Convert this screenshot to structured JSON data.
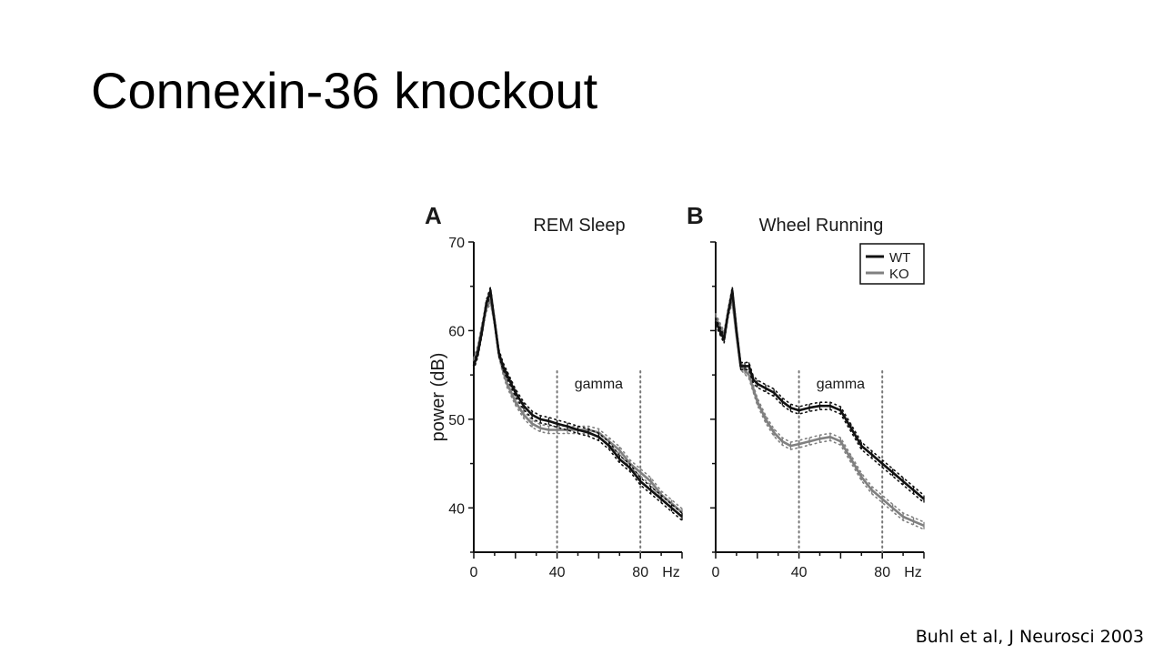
{
  "slide": {
    "title": "Connexin-36 knockout",
    "citation": "Buhl et al, J Neurosci 2003"
  },
  "chart_data": [
    {
      "type": "line",
      "panel_label": "A",
      "title": "REM Sleep",
      "ylabel": "power (dB)",
      "xlabel": "",
      "x_unit_label": "Hz",
      "xlim": [
        0,
        100
      ],
      "ylim": [
        35,
        70
      ],
      "x_ticks": [
        0,
        40,
        80
      ],
      "y_ticks": [
        40,
        50,
        60,
        70
      ],
      "band_label": "gamma",
      "band_lines": [
        40,
        80
      ],
      "series": [
        {
          "name": "WT",
          "color": "#111111",
          "x": [
            0,
            2,
            4,
            6,
            8,
            10,
            12,
            14,
            16,
            18,
            20,
            24,
            28,
            32,
            36,
            40,
            45,
            50,
            55,
            60,
            65,
            70,
            75,
            80,
            85,
            90,
            95,
            100
          ],
          "y": [
            56,
            57.5,
            60,
            63,
            64.5,
            61,
            57.5,
            56,
            55,
            54,
            53,
            51.5,
            50.5,
            50,
            49.8,
            49.5,
            49.2,
            48.8,
            48.5,
            48,
            47,
            45.5,
            44.5,
            43,
            42,
            41,
            40,
            39
          ]
        },
        {
          "name": "KO",
          "color": "#808080",
          "x": [
            0,
            2,
            4,
            6,
            8,
            10,
            12,
            14,
            16,
            18,
            20,
            24,
            28,
            32,
            36,
            40,
            45,
            50,
            55,
            60,
            65,
            70,
            75,
            80,
            85,
            90,
            95,
            100
          ],
          "y": [
            56.5,
            58,
            60.5,
            62.5,
            63.5,
            61,
            57.5,
            55.5,
            54,
            53,
            52,
            50.5,
            49.5,
            49,
            48.8,
            48.8,
            48.8,
            48.8,
            48.8,
            48.5,
            47.5,
            46.5,
            45,
            44,
            43,
            41.5,
            40.5,
            39.5
          ]
        }
      ]
    },
    {
      "type": "line",
      "panel_label": "B",
      "title": "Wheel Running",
      "xlabel": "",
      "x_unit_label": "Hz",
      "xlim": [
        0,
        100
      ],
      "ylim": [
        35,
        70
      ],
      "x_ticks": [
        0,
        40,
        80
      ],
      "band_label": "gamma",
      "band_lines": [
        40,
        80
      ],
      "legend": {
        "position": "top-right",
        "entries": [
          "WT",
          "KO"
        ]
      },
      "series": [
        {
          "name": "WT",
          "color": "#111111",
          "x": [
            0,
            2,
            4,
            6,
            8,
            10,
            12,
            14,
            16,
            18,
            20,
            24,
            28,
            32,
            36,
            40,
            45,
            50,
            55,
            60,
            65,
            70,
            75,
            80,
            85,
            90,
            95,
            100
          ],
          "y": [
            61,
            60,
            59,
            62,
            64.5,
            60,
            56,
            56,
            56,
            54.5,
            54,
            53.5,
            53,
            52,
            51.3,
            51,
            51.3,
            51.5,
            51.5,
            51,
            49,
            47,
            46,
            45,
            44,
            43,
            42,
            41
          ]
        },
        {
          "name": "KO",
          "color": "#808080",
          "x": [
            0,
            2,
            4,
            6,
            8,
            10,
            12,
            14,
            16,
            18,
            20,
            24,
            28,
            32,
            36,
            40,
            45,
            50,
            55,
            60,
            65,
            70,
            75,
            80,
            85,
            90,
            95,
            100
          ],
          "y": [
            61.5,
            60.5,
            59.5,
            62,
            63.5,
            59.5,
            56,
            55.5,
            55,
            53.5,
            52,
            50,
            48.5,
            47.5,
            47,
            47.2,
            47.5,
            47.8,
            48,
            47.5,
            45.5,
            43.5,
            42,
            41,
            40,
            39,
            38.5,
            38
          ]
        }
      ]
    }
  ]
}
